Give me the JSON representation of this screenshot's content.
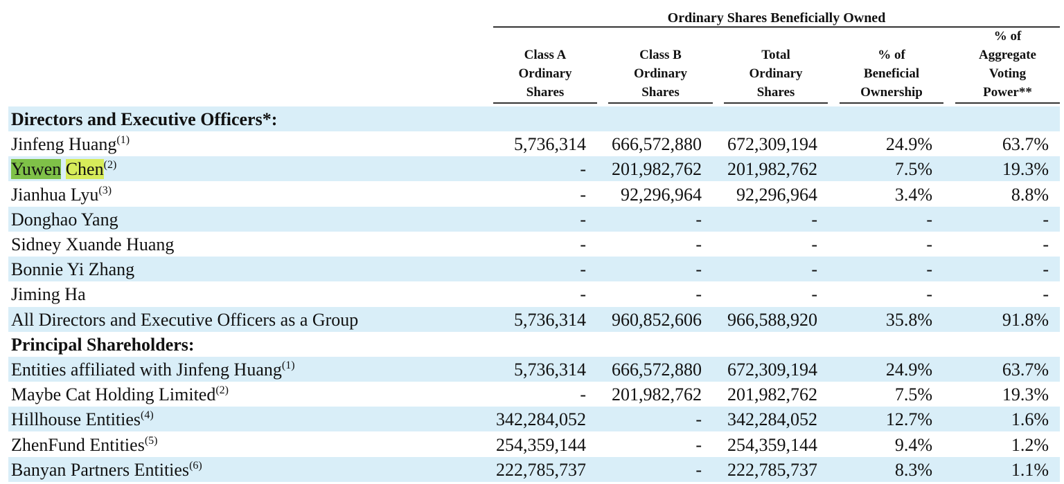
{
  "header": {
    "group_title": "Ordinary Shares Beneficially Owned",
    "columns": [
      {
        "key": "class_a",
        "lines": [
          "Class A",
          "Ordinary",
          "Shares"
        ]
      },
      {
        "key": "class_b",
        "lines": [
          "Class B",
          "Ordinary",
          "Shares"
        ]
      },
      {
        "key": "total",
        "lines": [
          "Total",
          "Ordinary",
          "Shares"
        ]
      },
      {
        "key": "pct_ben",
        "lines": [
          "% of",
          "Beneficial",
          "Ownership"
        ]
      },
      {
        "key": "pct_vote",
        "lines": [
          "% of",
          "Aggregate",
          "Voting",
          "Power**"
        ]
      }
    ]
  },
  "rows": [
    {
      "type": "section",
      "label": "Directors and Executive Officers*:"
    },
    {
      "label": "Jinfeng Huang",
      "note": "(1)",
      "class_a": "5,736,314",
      "class_b": "666,572,880",
      "total": "672,309,194",
      "pct_ben": "24.9%",
      "pct_vote": "63.7%"
    },
    {
      "label": "Yuwen Chen",
      "note": "(2)",
      "highlight": true,
      "first": "Yuwen",
      "last": "Chen",
      "class_a": "-",
      "class_b": "201,982,762",
      "total": "201,982,762",
      "pct_ben": "7.5%",
      "pct_vote": "19.3%"
    },
    {
      "label": "Jianhua Lyu",
      "note": "(3)",
      "class_a": "-",
      "class_b": "92,296,964",
      "total": "92,296,964",
      "pct_ben": "3.4%",
      "pct_vote": "8.8%"
    },
    {
      "label": "Donghao Yang",
      "class_a": "-",
      "class_b": "-",
      "total": "-",
      "pct_ben": "-",
      "pct_vote": "-"
    },
    {
      "label": "Sidney Xuande Huang",
      "class_a": "-",
      "class_b": "-",
      "total": "-",
      "pct_ben": "-",
      "pct_vote": "-"
    },
    {
      "label": "Bonnie Yi Zhang",
      "class_a": "-",
      "class_b": "-",
      "total": "-",
      "pct_ben": "-",
      "pct_vote": "-"
    },
    {
      "label": "Jiming Ha",
      "class_a": "-",
      "class_b": "-",
      "total": "-",
      "pct_ben": "-",
      "pct_vote": "-"
    },
    {
      "label": "All Directors and Executive Officers as a Group",
      "class_a": "5,736,314",
      "class_b": "960,852,606",
      "total": "966,588,920",
      "pct_ben": "35.8%",
      "pct_vote": "91.8%"
    },
    {
      "type": "section",
      "label": "Principal Shareholders:"
    },
    {
      "label": "Entities affiliated with Jinfeng Huang",
      "note": "(1)",
      "class_a": "5,736,314",
      "class_b": "666,572,880",
      "total": "672,309,194",
      "pct_ben": "24.9%",
      "pct_vote": "63.7%"
    },
    {
      "label": "Maybe Cat Holding Limited",
      "note": "(2)",
      "class_a": "-",
      "class_b": "201,982,762",
      "total": "201,982,762",
      "pct_ben": "7.5%",
      "pct_vote": "19.3%"
    },
    {
      "label": "Hillhouse Entities",
      "note": "(4)",
      "class_a": "342,284,052",
      "class_b": "-",
      "total": "342,284,052",
      "pct_ben": "12.7%",
      "pct_vote": "1.6%"
    },
    {
      "label": "ZhenFund Entities",
      "note": "(5)",
      "class_a": "254,359,144",
      "class_b": "-",
      "total": "254,359,144",
      "pct_ben": "9.4%",
      "pct_vote": "1.2%"
    },
    {
      "label": "Banyan Partners Entities",
      "note": "(6)",
      "class_a": "222,785,737",
      "class_b": "-",
      "total": "222,785,737",
      "pct_ben": "8.3%",
      "pct_vote": "1.1%"
    }
  ]
}
